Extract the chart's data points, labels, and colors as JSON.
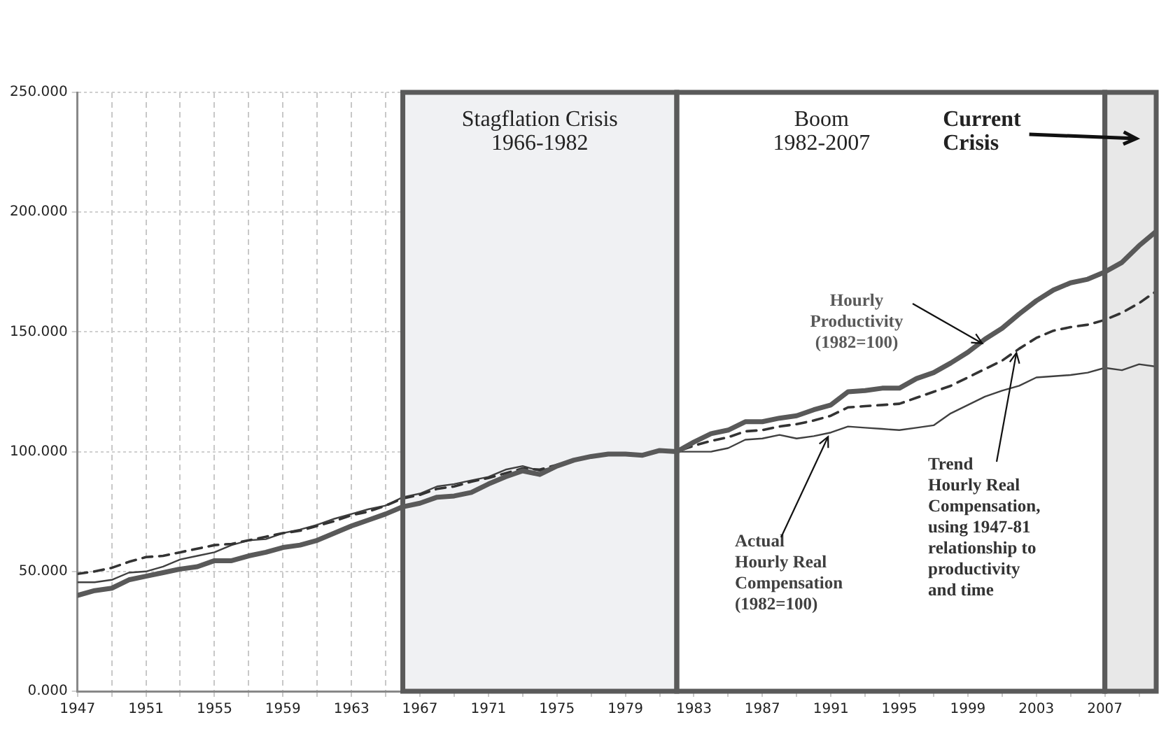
{
  "chart_data": {
    "type": "line",
    "x": [
      1947,
      1948,
      1949,
      1950,
      1951,
      1952,
      1953,
      1954,
      1955,
      1956,
      1957,
      1958,
      1959,
      1960,
      1961,
      1962,
      1963,
      1964,
      1965,
      1966,
      1967,
      1968,
      1969,
      1970,
      1971,
      1972,
      1973,
      1974,
      1975,
      1976,
      1977,
      1978,
      1979,
      1980,
      1981,
      1982,
      1983,
      1984,
      1985,
      1986,
      1987,
      1988,
      1989,
      1990,
      1991,
      1992,
      1993,
      1994,
      1995,
      1996,
      1997,
      1998,
      1999,
      2000,
      2001,
      2002,
      2003,
      2004,
      2005,
      2006,
      2007,
      2008,
      2009,
      2010
    ],
    "series": [
      {
        "name": "Hourly\nProductivity\n(1982=100)",
        "color": "#595959",
        "line_style": "solid",
        "values": [
          40,
          42,
          43,
          46.5,
          48,
          49.5,
          51,
          52,
          54.5,
          54.5,
          56.5,
          58,
          60,
          61,
          63,
          66,
          69,
          71.5,
          74,
          77,
          78.5,
          81,
          81.5,
          83,
          86.5,
          89.5,
          92,
          90.5,
          94,
          96.5,
          98,
          99,
          99,
          98.5,
          100.5,
          100,
          104,
          107.5,
          109,
          112.5,
          112.5,
          114,
          115,
          117.5,
          119.5,
          125,
          125.5,
          126.5,
          126.5,
          130.5,
          133,
          137,
          141.5,
          147,
          151.5,
          157.5,
          163,
          167.5,
          170.5,
          172,
          175,
          179,
          186,
          192
        ]
      },
      {
        "name": "Trend\nHourly Real\nCompensation,\nusing 1947-81\nrelationship to\nproductivity\nand time",
        "color": "#333333",
        "line_style": "dashed",
        "values": [
          49,
          50,
          51.5,
          54,
          56,
          56.5,
          58,
          59.5,
          61,
          61.5,
          63,
          64.5,
          66,
          67,
          69,
          71,
          73.5,
          75,
          77.5,
          80.5,
          82,
          84.5,
          85.5,
          87.5,
          89,
          91,
          93,
          92.5,
          94.5,
          96.5,
          98,
          99,
          99,
          98.5,
          100.5,
          100,
          102.5,
          104.5,
          106,
          108.5,
          109,
          110.5,
          111.5,
          113,
          115,
          118.5,
          119,
          119.5,
          120,
          122.5,
          125,
          127.5,
          131,
          134.5,
          138,
          143,
          147.5,
          150.5,
          152,
          153,
          155,
          158,
          162,
          167
        ]
      },
      {
        "name": "Actual\nHourly Real\nCompensation\n(1982=100)",
        "color": "#404040",
        "line_style": "solid",
        "values": [
          45.5,
          45.5,
          46.5,
          49.5,
          50,
          52,
          55,
          56.5,
          58,
          61,
          63,
          63.5,
          66,
          67.5,
          69.5,
          72,
          74,
          76,
          77.5,
          81,
          82.5,
          85.5,
          86.5,
          88,
          89.5,
          92.5,
          94,
          92,
          94,
          96.5,
          98,
          99,
          98.5,
          98.5,
          100,
          100,
          100,
          100,
          101.5,
          105,
          105.5,
          107,
          105.5,
          106.5,
          108,
          110.5,
          110,
          109.5,
          109,
          110,
          111,
          116,
          119.5,
          123,
          125.5,
          127.5,
          131,
          131.5,
          132,
          133,
          135,
          134,
          136.5,
          135.5
        ]
      }
    ],
    "xlim": [
      1947,
      2010
    ],
    "xticks": [
      1947,
      {
        "value": 1949,
        "label": null
      },
      1951,
      {
        "value": 1953,
        "label": null
      },
      1955,
      {
        "value": 1957,
        "label": null
      },
      1959,
      {
        "value": 1961,
        "label": null
      },
      1963,
      {
        "value": 1965,
        "label": null
      },
      1967,
      {
        "value": 1969,
        "label": null
      },
      1971,
      {
        "value": 1973,
        "label": null
      },
      1975,
      {
        "value": 1977,
        "label": null
      },
      1979,
      {
        "value": 1981,
        "label": null
      },
      1983,
      {
        "value": 1985,
        "label": null
      },
      1987,
      {
        "value": 1989,
        "label": null
      },
      1991,
      {
        "value": 1993,
        "label": null
      },
      1995,
      {
        "value": 1997,
        "label": null
      },
      1999,
      {
        "value": 2001,
        "label": null
      },
      2003,
      {
        "value": 2005,
        "label": null
      },
      2007,
      {
        "value": 2009,
        "label": null
      }
    ],
    "ylim": [
      0,
      250
    ],
    "yticks": [
      {
        "value": 0,
        "label": "0.000"
      },
      {
        "value": 50,
        "label": "50.000"
      },
      {
        "value": 100,
        "label": "100.000"
      },
      {
        "value": 150,
        "label": "150.000"
      },
      {
        "value": 200,
        "label": "200.000"
      },
      {
        "value": 250,
        "label": "250.000"
      }
    ],
    "bands": [
      {
        "axis": "x",
        "from": 1966,
        "to": 1982,
        "label": "Stagflation Crisis\n1966-1982",
        "color": "#f0f1f3"
      },
      {
        "axis": "x",
        "from": 1982,
        "to": 2007,
        "label": "Boom\n1982-2007",
        "color": "#ffffff"
      },
      {
        "axis": "x",
        "from": 2007,
        "to": 2010,
        "label": "Current\nCrisis",
        "color": "#e8e8e8"
      }
    ],
    "grid": true,
    "legend": false,
    "marker": "none"
  }
}
